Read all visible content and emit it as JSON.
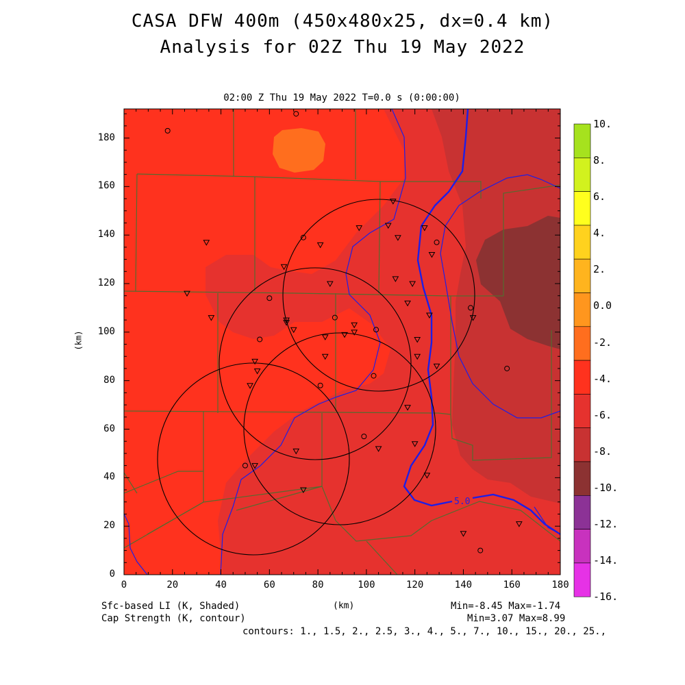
{
  "title_line1": "CASA DFW 400m (450x480x25, dx=0.4 km)",
  "title_line2": "Analysis for 02Z Thu 19 May 2022",
  "subtitle": "02:00 Z Thu 19 May 2022    T=0.0 s (0:00:00)",
  "axes": {
    "xlabel": "(km)",
    "ylabel": "(km)",
    "xlim": [
      0,
      180
    ],
    "ylim": [
      0,
      192
    ],
    "xticks": [
      "0",
      "20",
      "40",
      "60",
      "80",
      "100",
      "120",
      "140",
      "160",
      "180"
    ],
    "yticks": [
      "0",
      "20",
      "40",
      "60",
      "80",
      "100",
      "120",
      "140",
      "160",
      "180"
    ]
  },
  "colorbar": {
    "labels": [
      "10.",
      "8.",
      "6.",
      "4.",
      "2.",
      "0.0",
      "-2.",
      "-4.",
      "-6.",
      "-8.",
      "-10.",
      "-12.",
      "-14.",
      "-16."
    ],
    "colors": [
      "#a6e21e",
      "#d2f21e",
      "#ffff1e",
      "#ffd21e",
      "#ffb41e",
      "#ff961e",
      "#ff6e1e",
      "#ff321e",
      "#e6322e",
      "#c83232",
      "#8c3232",
      "#8c3296",
      "#c832be",
      "#e632e6"
    ]
  },
  "field_colors": {
    "lev_minus2_minus4": "#ff321e",
    "lev_minus4_minus6": "#e6322e",
    "lev_minus6_minus8": "#c83232",
    "lev_minus8_minus10": "#8c3232",
    "lev_0_minus2": "#ff6e1e",
    "county_lines": "#556b2f",
    "contour": "#1e1ee6"
  },
  "contour_label": "5.0",
  "footer": {
    "left1": "Sfc-based LI (K, Shaded)",
    "left2": "Cap Strength (K, contour)",
    "center": "(km)",
    "right1": "Min=-8.45 Max=-1.74",
    "right2": "Min=3.07 Max=8.99",
    "contours": "contours: 1., 1.5, 2., 2.5, 3., 4., 5., 7., 10., 15., 20., 25.,"
  }
}
